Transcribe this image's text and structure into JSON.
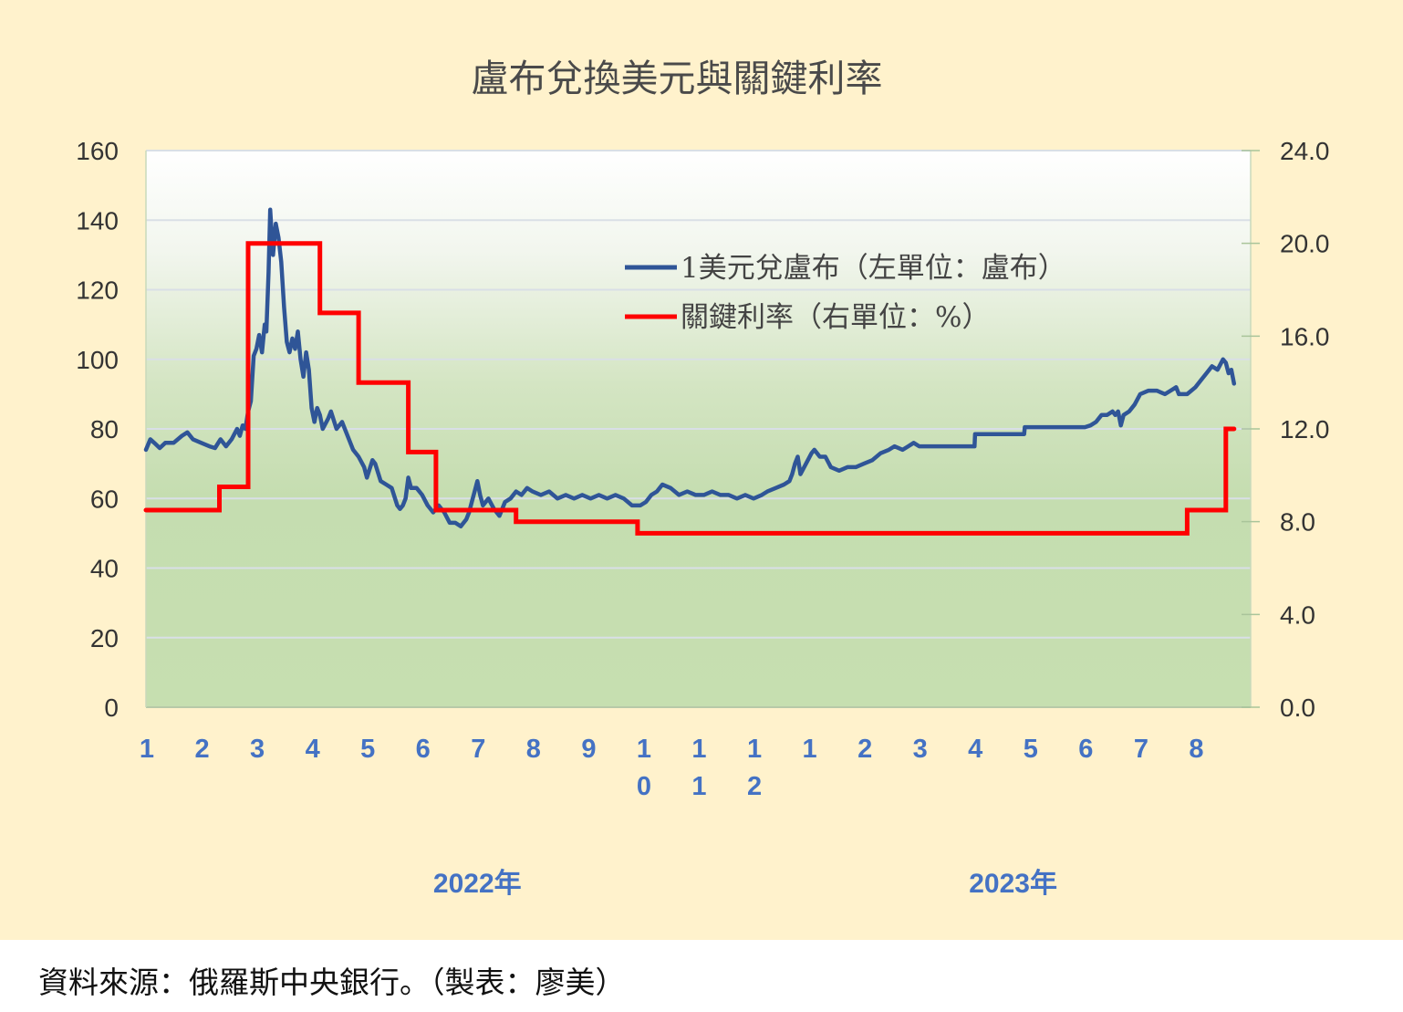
{
  "chart_data": {
    "type": "line",
    "title": "盧布兌換美元與關鍵利率",
    "left_axis": {
      "ylim": [
        0,
        160
      ],
      "ticks": [
        "0",
        "20",
        "40",
        "60",
        "80",
        "100",
        "120",
        "140",
        "160"
      ]
    },
    "right_axis": {
      "ylim": [
        0,
        24
      ],
      "ticks": [
        "0.0",
        "4.0",
        "8.0",
        "12.0",
        "16.0",
        "20.0",
        "24.0"
      ]
    },
    "x_range_months": [
      0,
      20
    ],
    "x_tick_labels": [
      {
        "m": 0,
        "label": "1"
      },
      {
        "m": 1,
        "label": "2"
      },
      {
        "m": 2,
        "label": "3"
      },
      {
        "m": 3,
        "label": "4"
      },
      {
        "m": 4,
        "label": "5"
      },
      {
        "m": 5,
        "label": "6"
      },
      {
        "m": 6,
        "label": "7"
      },
      {
        "m": 7,
        "label": "8"
      },
      {
        "m": 8,
        "label": "9"
      },
      {
        "m": 9,
        "label": "10"
      },
      {
        "m": 10,
        "label": "11"
      },
      {
        "m": 11,
        "label": "12"
      },
      {
        "m": 12,
        "label": "1"
      },
      {
        "m": 13,
        "label": "2"
      },
      {
        "m": 14,
        "label": "3"
      },
      {
        "m": 15,
        "label": "4"
      },
      {
        "m": 16,
        "label": "5"
      },
      {
        "m": 17,
        "label": "6"
      },
      {
        "m": 18,
        "label": "7"
      },
      {
        "m": 19,
        "label": "8"
      }
    ],
    "year_labels": [
      {
        "label": "2022年",
        "m": 6
      },
      {
        "label": "2023年",
        "m": 15.7
      }
    ],
    "legend": {
      "position": "top-right"
    },
    "grid": true,
    "series": [
      {
        "name": "1美元兌盧布（左單位：盧布）",
        "color": "#2f5597",
        "axis": "left",
        "points": [
          [
            0.0,
            74
          ],
          [
            0.08,
            77
          ],
          [
            0.15,
            76
          ],
          [
            0.25,
            74.5
          ],
          [
            0.35,
            76
          ],
          [
            0.5,
            76
          ],
          [
            0.65,
            78
          ],
          [
            0.75,
            79
          ],
          [
            0.85,
            77
          ],
          [
            1.0,
            76
          ],
          [
            1.15,
            75
          ],
          [
            1.25,
            74.5
          ],
          [
            1.35,
            77
          ],
          [
            1.45,
            75
          ],
          [
            1.55,
            77
          ],
          [
            1.65,
            80
          ],
          [
            1.7,
            78
          ],
          [
            1.75,
            81
          ],
          [
            1.8,
            80
          ],
          [
            1.85,
            85
          ],
          [
            1.9,
            88
          ],
          [
            1.95,
            101
          ],
          [
            2.0,
            103
          ],
          [
            2.05,
            107
          ],
          [
            2.1,
            102
          ],
          [
            2.15,
            110
          ],
          [
            2.18,
            108
          ],
          [
            2.22,
            125
          ],
          [
            2.25,
            143
          ],
          [
            2.3,
            130
          ],
          [
            2.35,
            139
          ],
          [
            2.4,
            135
          ],
          [
            2.45,
            128
          ],
          [
            2.5,
            115
          ],
          [
            2.55,
            105
          ],
          [
            2.6,
            102
          ],
          [
            2.65,
            106
          ],
          [
            2.7,
            103
          ],
          [
            2.75,
            108
          ],
          [
            2.8,
            100
          ],
          [
            2.85,
            95
          ],
          [
            2.9,
            102
          ],
          [
            2.95,
            97
          ],
          [
            3.0,
            86
          ],
          [
            3.05,
            82
          ],
          [
            3.1,
            86
          ],
          [
            3.15,
            84
          ],
          [
            3.2,
            80
          ],
          [
            3.3,
            83
          ],
          [
            3.35,
            85
          ],
          [
            3.45,
            80
          ],
          [
            3.55,
            82
          ],
          [
            3.65,
            78
          ],
          [
            3.75,
            74
          ],
          [
            3.85,
            72
          ],
          [
            3.95,
            69
          ],
          [
            4.0,
            66
          ],
          [
            4.1,
            71
          ],
          [
            4.15,
            70
          ],
          [
            4.25,
            65
          ],
          [
            4.35,
            64
          ],
          [
            4.45,
            63
          ],
          [
            4.55,
            58
          ],
          [
            4.6,
            57
          ],
          [
            4.65,
            58
          ],
          [
            4.7,
            60
          ],
          [
            4.75,
            66
          ],
          [
            4.8,
            63
          ],
          [
            4.9,
            63
          ],
          [
            5.0,
            61
          ],
          [
            5.1,
            58
          ],
          [
            5.2,
            56
          ],
          [
            5.3,
            58
          ],
          [
            5.4,
            56
          ],
          [
            5.5,
            53
          ],
          [
            5.6,
            53
          ],
          [
            5.7,
            52
          ],
          [
            5.8,
            54
          ],
          [
            5.85,
            56
          ],
          [
            5.9,
            59
          ],
          [
            5.95,
            62
          ],
          [
            6.0,
            65
          ],
          [
            6.05,
            61
          ],
          [
            6.1,
            58
          ],
          [
            6.2,
            60
          ],
          [
            6.3,
            57
          ],
          [
            6.4,
            55
          ],
          [
            6.5,
            59
          ],
          [
            6.6,
            60
          ],
          [
            6.7,
            62
          ],
          [
            6.8,
            61
          ],
          [
            6.9,
            63
          ],
          [
            7.0,
            62
          ],
          [
            7.15,
            61
          ],
          [
            7.3,
            62
          ],
          [
            7.45,
            60
          ],
          [
            7.6,
            61
          ],
          [
            7.75,
            60
          ],
          [
            7.9,
            61
          ],
          [
            8.05,
            60
          ],
          [
            8.2,
            61
          ],
          [
            8.35,
            60
          ],
          [
            8.5,
            61
          ],
          [
            8.65,
            60
          ],
          [
            8.8,
            58
          ],
          [
            8.95,
            58
          ],
          [
            9.05,
            59
          ],
          [
            9.15,
            61
          ],
          [
            9.25,
            62
          ],
          [
            9.35,
            64
          ],
          [
            9.5,
            63
          ],
          [
            9.65,
            61
          ],
          [
            9.8,
            62
          ],
          [
            9.95,
            61
          ],
          [
            10.1,
            61
          ],
          [
            10.25,
            62
          ],
          [
            10.4,
            61
          ],
          [
            10.55,
            61
          ],
          [
            10.7,
            60
          ],
          [
            10.85,
            61
          ],
          [
            11.0,
            60
          ],
          [
            11.15,
            61
          ],
          [
            11.25,
            62
          ],
          [
            11.4,
            63
          ],
          [
            11.55,
            64
          ],
          [
            11.65,
            65
          ],
          [
            11.7,
            67
          ],
          [
            11.75,
            70
          ],
          [
            11.8,
            72
          ],
          [
            11.85,
            67
          ],
          [
            11.95,
            70
          ],
          [
            12.05,
            73
          ],
          [
            12.1,
            74
          ],
          [
            12.2,
            72
          ],
          [
            12.3,
            72
          ],
          [
            12.4,
            69
          ],
          [
            12.55,
            68
          ],
          [
            12.7,
            69
          ],
          [
            12.85,
            69
          ],
          [
            13.0,
            70
          ],
          [
            13.15,
            71
          ],
          [
            13.3,
            73
          ],
          [
            13.45,
            74
          ],
          [
            13.55,
            75
          ],
          [
            13.7,
            74
          ],
          [
            13.8,
            75
          ],
          [
            13.9,
            76
          ],
          [
            14.0,
            75
          ],
          [
            14.15,
            75
          ],
          [
            14.3,
            75
          ],
          [
            14.45,
            75
          ],
          [
            14.6,
            75
          ],
          [
            14.75,
            75
          ],
          [
            14.9,
            75
          ],
          [
            15.0,
            75
          ],
          [
            15.01,
            78.5
          ],
          [
            15.5,
            78.5
          ],
          [
            15.9,
            78.5
          ],
          [
            15.91,
            80.5
          ],
          [
            16.5,
            80.5
          ],
          [
            17.0,
            80.5
          ],
          [
            17.1,
            81
          ],
          [
            17.2,
            82
          ],
          [
            17.3,
            84
          ],
          [
            17.4,
            84
          ],
          [
            17.5,
            85
          ],
          [
            17.55,
            84
          ],
          [
            17.6,
            85
          ],
          [
            17.65,
            81
          ],
          [
            17.7,
            84
          ],
          [
            17.8,
            85
          ],
          [
            17.9,
            87
          ],
          [
            18.0,
            90
          ],
          [
            18.15,
            91
          ],
          [
            18.3,
            91
          ],
          [
            18.45,
            90
          ],
          [
            18.55,
            91
          ],
          [
            18.65,
            92
          ],
          [
            18.7,
            90
          ],
          [
            18.85,
            90
          ],
          [
            19.0,
            92
          ],
          [
            19.1,
            94
          ],
          [
            19.2,
            96
          ],
          [
            19.3,
            98
          ],
          [
            19.4,
            97
          ],
          [
            19.5,
            100
          ],
          [
            19.55,
            99
          ],
          [
            19.6,
            96
          ],
          [
            19.65,
            97
          ],
          [
            19.7,
            93
          ]
        ]
      },
      {
        "name": "關鍵利率（右單位：%）",
        "color": "#ff0000",
        "axis": "right",
        "points": [
          [
            0.0,
            8.5
          ],
          [
            1.33,
            8.5
          ],
          [
            1.33,
            9.5
          ],
          [
            1.85,
            9.5
          ],
          [
            1.85,
            20
          ],
          [
            3.15,
            20
          ],
          [
            3.15,
            17
          ],
          [
            3.85,
            17
          ],
          [
            3.85,
            14
          ],
          [
            4.75,
            14
          ],
          [
            4.75,
            11
          ],
          [
            5.25,
            11
          ],
          [
            5.25,
            8.5
          ],
          [
            6.7,
            8.5
          ],
          [
            6.7,
            8
          ],
          [
            8.9,
            8
          ],
          [
            8.9,
            7.5
          ],
          [
            18.85,
            7.5
          ],
          [
            18.85,
            8.5
          ],
          [
            19.55,
            8.5
          ],
          [
            19.55,
            12
          ],
          [
            19.7,
            12
          ]
        ]
      }
    ]
  },
  "footer": {
    "source": "資料來源：俄羅斯中央銀行。（製表：廖美）"
  }
}
